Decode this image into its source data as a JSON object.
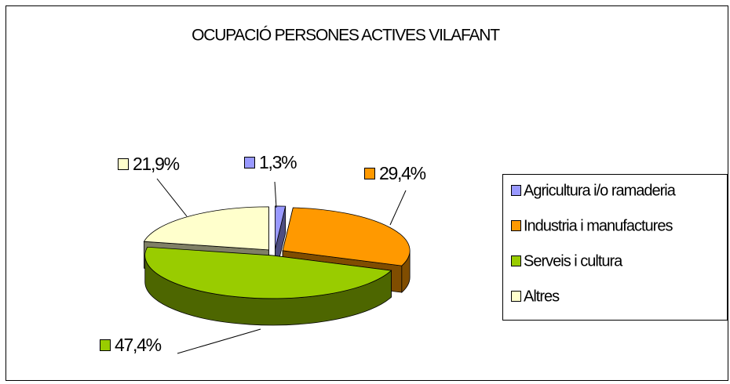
{
  "chart_data": {
    "type": "pie",
    "title": "OCUPACIÓ PERSONES ACTIVES VILAFANT",
    "categories": [
      "Agricultura i/o ramaderia",
      "Industria i manufactures",
      "Serveis i cultura",
      "Altres"
    ],
    "values": [
      1.3,
      29.4,
      47.4,
      21.9
    ],
    "value_labels": [
      "1,3%",
      "29,4%",
      "47,4%",
      "21,9%"
    ],
    "colors": [
      "#9999ff",
      "#ff9900",
      "#99cc00",
      "#ffffcc"
    ],
    "legend": true,
    "legend_position": "right",
    "three_d": true
  }
}
